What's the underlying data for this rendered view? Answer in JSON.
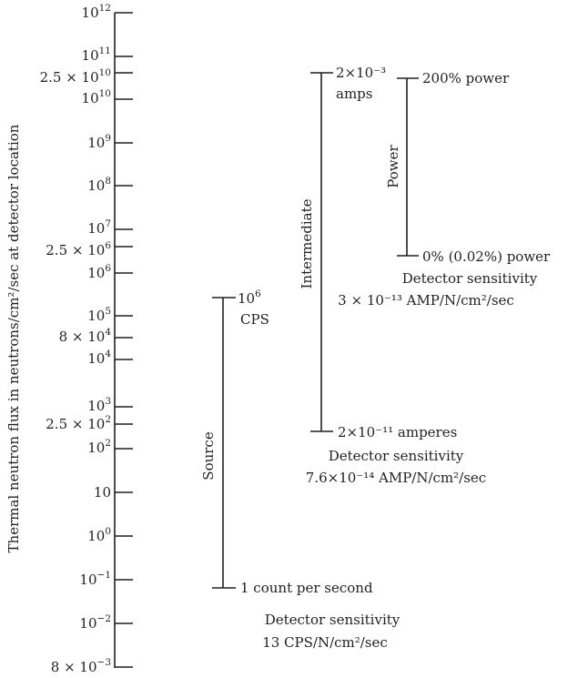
{
  "axis": {
    "label": "Thermal neutron flux in neutrons/cm²/sec at detector location",
    "ticks": [
      {
        "id": "1e12",
        "base": "10",
        "exp": "12"
      },
      {
        "id": "1e11",
        "base": "10",
        "exp": "11"
      },
      {
        "id": "2.5e10",
        "base": "2.5 × 10",
        "exp": "10"
      },
      {
        "id": "1e10",
        "base": "10",
        "exp": "10"
      },
      {
        "id": "1e9",
        "base": "10",
        "exp": "9"
      },
      {
        "id": "1e8",
        "base": "10",
        "exp": "8"
      },
      {
        "id": "1e7",
        "base": "10",
        "exp": "7"
      },
      {
        "id": "2.5e6",
        "base": "2.5 × 10",
        "exp": "6"
      },
      {
        "id": "1e6",
        "base": "10",
        "exp": "6"
      },
      {
        "id": "1e5",
        "base": "10",
        "exp": "5"
      },
      {
        "id": "8e4",
        "base": "8 × 10",
        "exp": "4"
      },
      {
        "id": "1e4",
        "base": "10",
        "exp": "4"
      },
      {
        "id": "1e3",
        "base": "10",
        "exp": "3"
      },
      {
        "id": "2.5e2",
        "base": "2.5 × 10",
        "exp": "2"
      },
      {
        "id": "1e2",
        "base": "10",
        "exp": "2"
      },
      {
        "id": "10",
        "base": "10",
        "exp": ""
      },
      {
        "id": "1e0",
        "base": "10",
        "exp": "0"
      },
      {
        "id": "1e-1",
        "base": "10",
        "exp": "−1"
      },
      {
        "id": "1e-2",
        "base": "10",
        "exp": "−2"
      },
      {
        "id": "8e-3",
        "base": "8 × 10",
        "exp": "−3"
      }
    ]
  },
  "source": {
    "name": "Source",
    "top_base": "10",
    "top_exp": "6",
    "top_unit": "CPS",
    "bottom": "1 count per second",
    "sensitivity_title": "Detector sensitivity",
    "sensitivity_value": "13 CPS/N/cm²/sec"
  },
  "intermediate": {
    "name": "Intermediate",
    "top": "2×10⁻³",
    "top_unit": "amps",
    "bottom": "2×10⁻¹¹ amperes",
    "sensitivity_title": "Detector sensitivity",
    "sensitivity_value": "7.6×10⁻¹⁴ AMP/N/cm²/sec"
  },
  "power": {
    "name": "Power",
    "top": "200% power",
    "bottom": "0% (0.02%) power",
    "sensitivity_title": "Detector sensitivity",
    "sensitivity_value": "3 × 10⁻¹³ AMP/N/cm²/sec"
  }
}
